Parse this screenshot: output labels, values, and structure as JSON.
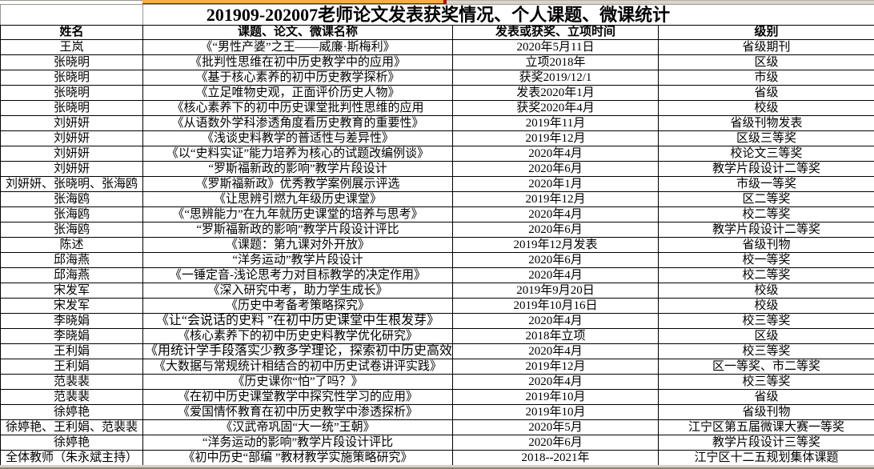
{
  "table": {
    "title": "201909-202007老师论文发表获奖情况、个人课题、微课统计",
    "columns": [
      "姓名",
      "课题、论文、微课名称",
      "发表或获奖、立项时间",
      "级别"
    ],
    "rows": [
      [
        "王岚",
        "《“男性产婆”之王——威廉·斯梅利》",
        "2020年5月11日",
        "省级期刊"
      ],
      [
        "张晓明",
        "《批判性思维在初中历史教学中的应用》",
        "立项2018年",
        "区级"
      ],
      [
        "张晓明",
        "《基于核心素养的初中历史教学探析》",
        "获奖2019/12/1",
        "市级"
      ],
      [
        "张晓明",
        "《立足唯物史观，正面评价历史人物》",
        "发表2020年1月",
        "省级"
      ],
      [
        "张晓明",
        "《核心素养下的初中历史课堂批判性思维的应用",
        "获奖2020年4月",
        "校级"
      ],
      [
        "刘妍妍",
        "《从语数外学科渗透角度看历史教育的重要性》",
        "2019年11月",
        "省级刊物发表"
      ],
      [
        "刘妍妍",
        "《浅谈史料教学的普适性与差异性》",
        "2019年12月",
        "区级三等奖"
      ],
      [
        "刘妍妍",
        "《以“史料实证”能力培养为核心的试题改编例谈》",
        "2020年4月",
        "校论文三等奖"
      ],
      [
        "刘妍妍",
        "“罗斯福新政的影响”教学片段设计",
        "2020年6月",
        "教学片段设计二等奖"
      ],
      [
        "刘妍妍、张晓明、张海鸥",
        "《罗斯福新政》优秀教学案例展示评选",
        "2020年1月",
        "市级一等奖"
      ],
      [
        "张海鸥",
        "《让思辨引燃九年级历史课堂》",
        "2019年12月",
        "区二等奖"
      ],
      [
        "张海鸥",
        "《“思辨能力”在九年就历史课堂的培养与思考》",
        "2020年4月",
        "校二等奖"
      ],
      [
        "张海鸥",
        "“罗斯福新政的影响”教学片段设计评比",
        "2020年6月",
        "教学片段设计二等奖"
      ],
      [
        "陈述",
        "《课题：第九课对外开放》",
        "2019年12月发表",
        "省级刊物"
      ],
      [
        "邱海燕",
        "“洋务运动”教学片段设计",
        "2020年6月",
        "校一等奖"
      ],
      [
        "邱海燕",
        "《一锤定音-浅论思考力对目标教学的决定作用》",
        "2020年4月",
        "校二等奖"
      ],
      [
        "宋发军",
        "《深入研究中考，助力学生成长》",
        "2019年9月20日",
        "校级"
      ],
      [
        "宋发军",
        "《历史中考备考策略探究》",
        "2019年10月16日",
        "校级"
      ],
      [
        "李晓娟",
        "《让“会说话的史料 ”在初中历史课堂中生根发芽》",
        "2020年4月",
        "校三等奖"
      ],
      [
        "李晓娟",
        "《核心素养下的初中历史史料教学优化研究》",
        "2018年立项",
        "区级"
      ],
      [
        "王利娟",
        "《用统计学手段落实少教多学理论，探索初中历史高效课",
        "2020年4月",
        "校三等奖"
      ],
      [
        "王利娟",
        "《大数据与常规统计相结合的初中历史试卷讲评实践》",
        "2019年12月",
        "区一等奖、市二等奖"
      ],
      [
        "范裴裴",
        "《历史课你“怕”了吗？》",
        "2020年4月",
        "校三等奖"
      ],
      [
        "范裴裴",
        "《在初中历史课堂教学中探究性学习的应用》",
        "2019年10月",
        "省级"
      ],
      [
        "徐婷艳",
        "《爱国情怀教育在初中历史教学中渗透探析》",
        "2019年10月",
        "省级刊物"
      ],
      [
        "徐婷艳、王利娟、范裴裴",
        "《汉武帝巩固“大一统”王朝》",
        "2020年5月",
        "江宁区第五届微课大赛一等奖"
      ],
      [
        "徐婷艳",
        "“洋务运动的影响”教学片段设计评比",
        "2020年6月",
        "教学片段设计三等奖"
      ],
      [
        "全体教师（朱永斌主持）",
        "《初中历史“部编 ”教材教学实施策略研究》",
        "2018--2021年",
        "江宁区十二五规划集体课题"
      ]
    ],
    "large_font_rows": [
      19,
      21
    ]
  }
}
